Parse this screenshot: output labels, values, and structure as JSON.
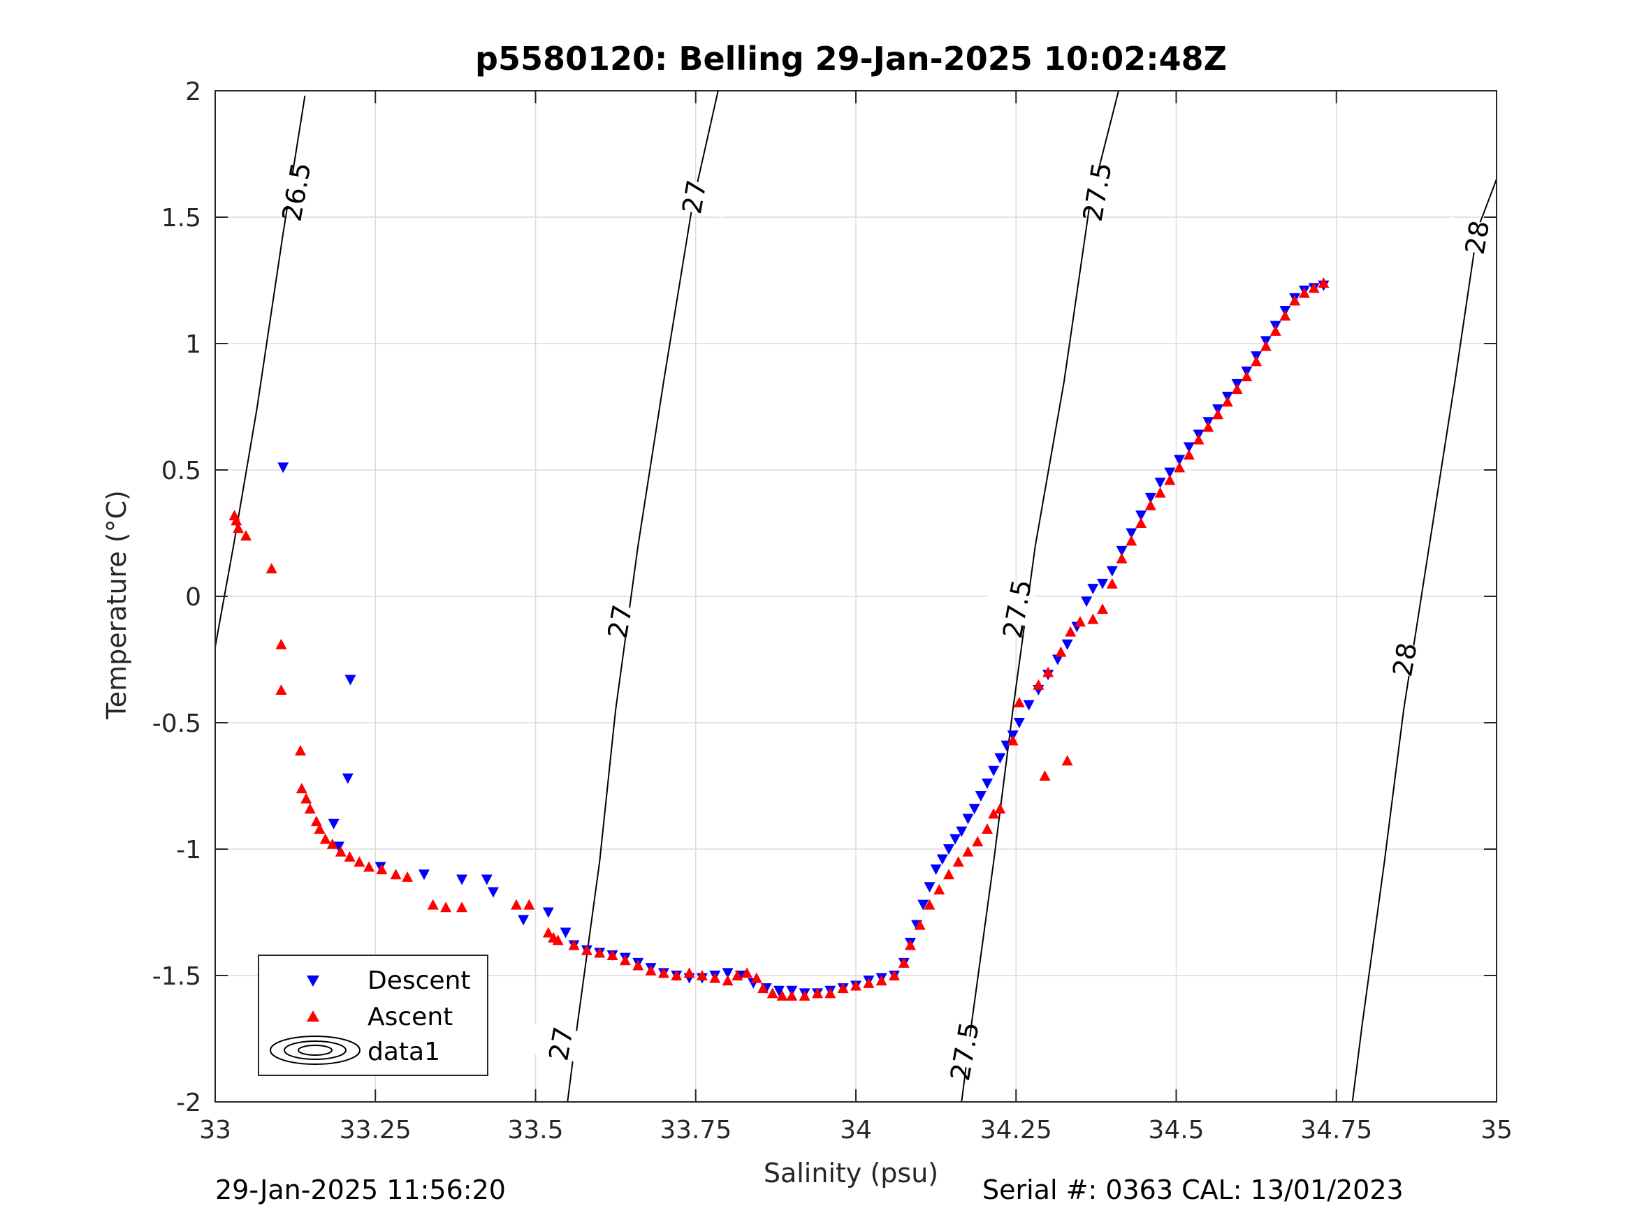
{
  "chart_data": {
    "type": "scatter",
    "title": "p5580120: Belling 29-Jan-2025 10:02:48Z",
    "xlabel": "Salinity (psu)",
    "ylabel": "Temperature (°C)",
    "xlim": [
      33,
      35
    ],
    "ylim": [
      -2,
      2
    ],
    "xticks": [
      33,
      33.25,
      33.5,
      33.75,
      34,
      34.25,
      34.5,
      34.75,
      35
    ],
    "xtick_labels": [
      "33",
      "33.25",
      "33.5",
      "33.75",
      "34",
      "34.25",
      "34.5",
      "34.75",
      "35"
    ],
    "yticks": [
      2,
      1.5,
      1,
      0.5,
      0,
      -0.5,
      -1,
      -1.5,
      -2
    ],
    "ytick_labels": [
      "2",
      "1.5",
      "1",
      "0.5",
      "0",
      "-0.5",
      "-1",
      "-1.5",
      "-2"
    ],
    "grid": true,
    "legend": {
      "placement": "bottom-left",
      "entries": [
        "Descent",
        "Ascent",
        "data1"
      ]
    },
    "series": [
      {
        "name": "Descent",
        "marker": "triangle-down",
        "color": "#0000ff",
        "points": [
          [
            33.106,
            0.51
          ],
          [
            33.211,
            -0.33
          ],
          [
            33.207,
            -0.72
          ],
          [
            33.185,
            -0.9
          ],
          [
            33.193,
            -0.99
          ],
          [
            33.258,
            -1.07
          ],
          [
            33.326,
            -1.1
          ],
          [
            33.385,
            -1.12
          ],
          [
            33.424,
            -1.12
          ],
          [
            33.434,
            -1.17
          ],
          [
            33.481,
            -1.28
          ],
          [
            33.52,
            -1.25
          ],
          [
            33.547,
            -1.33
          ],
          [
            33.56,
            -1.38
          ],
          [
            33.58,
            -1.4
          ],
          [
            33.6,
            -1.41
          ],
          [
            33.62,
            -1.42
          ],
          [
            33.64,
            -1.43
          ],
          [
            33.66,
            -1.45
          ],
          [
            33.68,
            -1.47
          ],
          [
            33.7,
            -1.49
          ],
          [
            33.72,
            -1.5
          ],
          [
            33.74,
            -1.51
          ],
          [
            33.76,
            -1.51
          ],
          [
            33.78,
            -1.5
          ],
          [
            33.8,
            -1.49
          ],
          [
            33.82,
            -1.5
          ],
          [
            33.84,
            -1.53
          ],
          [
            33.86,
            -1.55
          ],
          [
            33.88,
            -1.56
          ],
          [
            33.9,
            -1.56
          ],
          [
            33.92,
            -1.57
          ],
          [
            33.94,
            -1.57
          ],
          [
            33.96,
            -1.56
          ],
          [
            33.98,
            -1.55
          ],
          [
            34.0,
            -1.54
          ],
          [
            34.02,
            -1.52
          ],
          [
            34.04,
            -1.51
          ],
          [
            34.06,
            -1.5
          ],
          [
            34.075,
            -1.45
          ],
          [
            34.085,
            -1.37
          ],
          [
            34.095,
            -1.3
          ],
          [
            34.105,
            -1.22
          ],
          [
            34.115,
            -1.15
          ],
          [
            34.125,
            -1.08
          ],
          [
            34.135,
            -1.04
          ],
          [
            34.145,
            -1.0
          ],
          [
            34.155,
            -0.96
          ],
          [
            34.165,
            -0.93
          ],
          [
            34.175,
            -0.88
          ],
          [
            34.185,
            -0.84
          ],
          [
            34.195,
            -0.79
          ],
          [
            34.205,
            -0.74
          ],
          [
            34.215,
            -0.69
          ],
          [
            34.225,
            -0.64
          ],
          [
            34.235,
            -0.59
          ],
          [
            34.245,
            -0.55
          ],
          [
            34.255,
            -0.5
          ],
          [
            34.27,
            -0.43
          ],
          [
            34.285,
            -0.37
          ],
          [
            34.3,
            -0.31
          ],
          [
            34.315,
            -0.25
          ],
          [
            34.33,
            -0.19
          ],
          [
            34.345,
            -0.12
          ],
          [
            34.36,
            -0.02
          ],
          [
            34.37,
            0.03
          ],
          [
            34.385,
            0.05
          ],
          [
            34.4,
            0.1
          ],
          [
            34.415,
            0.18
          ],
          [
            34.43,
            0.25
          ],
          [
            34.445,
            0.32
          ],
          [
            34.46,
            0.39
          ],
          [
            34.475,
            0.45
          ],
          [
            34.49,
            0.49
          ],
          [
            34.505,
            0.54
          ],
          [
            34.52,
            0.59
          ],
          [
            34.535,
            0.64
          ],
          [
            34.55,
            0.69
          ],
          [
            34.565,
            0.74
          ],
          [
            34.58,
            0.79
          ],
          [
            34.595,
            0.84
          ],
          [
            34.61,
            0.89
          ],
          [
            34.625,
            0.95
          ],
          [
            34.64,
            1.01
          ],
          [
            34.655,
            1.07
          ],
          [
            34.67,
            1.13
          ],
          [
            34.685,
            1.18
          ],
          [
            34.7,
            1.21
          ],
          [
            34.715,
            1.22
          ],
          [
            34.73,
            1.23
          ]
        ]
      },
      {
        "name": "Ascent",
        "marker": "triangle-up",
        "color": "#ff0000",
        "points": [
          [
            33.03,
            0.32
          ],
          [
            33.033,
            0.3
          ],
          [
            33.036,
            0.27
          ],
          [
            33.048,
            0.24
          ],
          [
            33.088,
            0.11
          ],
          [
            33.103,
            -0.19
          ],
          [
            33.103,
            -0.37
          ],
          [
            33.133,
            -0.61
          ],
          [
            33.135,
            -0.76
          ],
          [
            33.142,
            -0.8
          ],
          [
            33.148,
            -0.84
          ],
          [
            33.158,
            -0.89
          ],
          [
            33.163,
            -0.92
          ],
          [
            33.172,
            -0.96
          ],
          [
            33.183,
            -0.98
          ],
          [
            33.196,
            -1.01
          ],
          [
            33.21,
            -1.03
          ],
          [
            33.225,
            -1.05
          ],
          [
            33.24,
            -1.07
          ],
          [
            33.26,
            -1.08
          ],
          [
            33.282,
            -1.1
          ],
          [
            33.3,
            -1.11
          ],
          [
            33.34,
            -1.22
          ],
          [
            33.36,
            -1.23
          ],
          [
            33.385,
            -1.23
          ],
          [
            33.47,
            -1.22
          ],
          [
            33.49,
            -1.22
          ],
          [
            33.52,
            -1.33
          ],
          [
            33.528,
            -1.35
          ],
          [
            33.535,
            -1.36
          ],
          [
            33.56,
            -1.38
          ],
          [
            33.58,
            -1.4
          ],
          [
            33.6,
            -1.41
          ],
          [
            33.62,
            -1.42
          ],
          [
            33.64,
            -1.44
          ],
          [
            33.66,
            -1.46
          ],
          [
            33.68,
            -1.48
          ],
          [
            33.7,
            -1.49
          ],
          [
            33.72,
            -1.5
          ],
          [
            33.74,
            -1.49
          ],
          [
            33.76,
            -1.5
          ],
          [
            33.78,
            -1.51
          ],
          [
            33.8,
            -1.52
          ],
          [
            33.815,
            -1.5
          ],
          [
            33.83,
            -1.49
          ],
          [
            33.845,
            -1.51
          ],
          [
            33.855,
            -1.55
          ],
          [
            33.87,
            -1.57
          ],
          [
            33.885,
            -1.58
          ],
          [
            33.9,
            -1.58
          ],
          [
            33.92,
            -1.58
          ],
          [
            33.94,
            -1.57
          ],
          [
            33.96,
            -1.57
          ],
          [
            33.98,
            -1.55
          ],
          [
            34.0,
            -1.54
          ],
          [
            34.02,
            -1.53
          ],
          [
            34.04,
            -1.52
          ],
          [
            34.06,
            -1.5
          ],
          [
            34.075,
            -1.45
          ],
          [
            34.085,
            -1.38
          ],
          [
            34.1,
            -1.3
          ],
          [
            34.115,
            -1.22
          ],
          [
            34.13,
            -1.16
          ],
          [
            34.145,
            -1.1
          ],
          [
            34.16,
            -1.05
          ],
          [
            34.175,
            -1.01
          ],
          [
            34.19,
            -0.97
          ],
          [
            34.205,
            -0.92
          ],
          [
            34.215,
            -0.86
          ],
          [
            34.225,
            -0.84
          ],
          [
            34.245,
            -0.57
          ],
          [
            34.255,
            -0.42
          ],
          [
            34.285,
            -0.35
          ],
          [
            34.3,
            -0.3
          ],
          [
            34.32,
            -0.22
          ],
          [
            34.335,
            -0.14
          ],
          [
            34.35,
            -0.1
          ],
          [
            34.37,
            -0.09
          ],
          [
            34.385,
            -0.05
          ],
          [
            34.4,
            0.05
          ],
          [
            34.415,
            0.15
          ],
          [
            34.43,
            0.22
          ],
          [
            34.445,
            0.29
          ],
          [
            34.46,
            0.36
          ],
          [
            34.475,
            0.41
          ],
          [
            34.49,
            0.46
          ],
          [
            34.505,
            0.51
          ],
          [
            34.52,
            0.56
          ],
          [
            34.535,
            0.62
          ],
          [
            34.55,
            0.67
          ],
          [
            34.565,
            0.72
          ],
          [
            34.58,
            0.77
          ],
          [
            34.595,
            0.82
          ],
          [
            34.61,
            0.87
          ],
          [
            34.625,
            0.93
          ],
          [
            34.64,
            0.99
          ],
          [
            34.655,
            1.05
          ],
          [
            34.67,
            1.11
          ],
          [
            34.685,
            1.17
          ],
          [
            34.7,
            1.2
          ],
          [
            34.715,
            1.22
          ],
          [
            34.73,
            1.24
          ],
          [
            34.295,
            -0.71
          ],
          [
            34.33,
            -0.65
          ]
        ]
      }
    ],
    "isopycnals": [
      {
        "label": "26.5",
        "points": [
          [
            33.0,
            -0.2
          ],
          [
            33.03,
            0.22
          ],
          [
            33.065,
            0.74
          ],
          [
            33.105,
            1.42
          ],
          [
            33.14,
            1.98
          ]
        ],
        "label_positions": [
          [
            33.127,
            1.6
          ]
        ]
      },
      {
        "label": "27",
        "points": [
          [
            33.55,
            -2.0
          ],
          [
            33.565,
            -1.7
          ],
          [
            33.6,
            -1.05
          ],
          [
            33.625,
            -0.45
          ],
          [
            33.66,
            0.2
          ],
          [
            33.7,
            0.85
          ],
          [
            33.745,
            1.55
          ],
          [
            33.785,
            2.0
          ]
        ],
        "label_positions": [
          [
            33.54,
            -1.77
          ],
          [
            33.632,
            -0.1
          ],
          [
            33.748,
            1.58
          ]
        ]
      },
      {
        "label": "27.5",
        "points": [
          [
            34.165,
            -2.0
          ],
          [
            34.18,
            -1.7
          ],
          [
            34.215,
            -1.05
          ],
          [
            34.245,
            -0.45
          ],
          [
            34.28,
            0.2
          ],
          [
            34.325,
            0.85
          ],
          [
            34.365,
            1.55
          ],
          [
            34.41,
            2.0
          ]
        ],
        "label_positions": [
          [
            34.17,
            -1.8
          ],
          [
            34.252,
            -0.05
          ],
          [
            34.377,
            1.6
          ]
        ]
      },
      {
        "label": "28",
        "points": [
          [
            34.775,
            -2.0
          ],
          [
            34.79,
            -1.7
          ],
          [
            34.825,
            -1.05
          ],
          [
            34.855,
            -0.45
          ],
          [
            34.895,
            0.2
          ],
          [
            34.935,
            0.85
          ],
          [
            34.97,
            1.45
          ],
          [
            35.0,
            1.65
          ]
        ],
        "label_positions": [
          [
            34.857,
            -0.25
          ],
          [
            34.97,
            1.42
          ]
        ]
      }
    ]
  },
  "footer": {
    "left": "29-Jan-2025 11:56:20",
    "right": "Serial #: 0363  CAL: 13/01/2023"
  }
}
